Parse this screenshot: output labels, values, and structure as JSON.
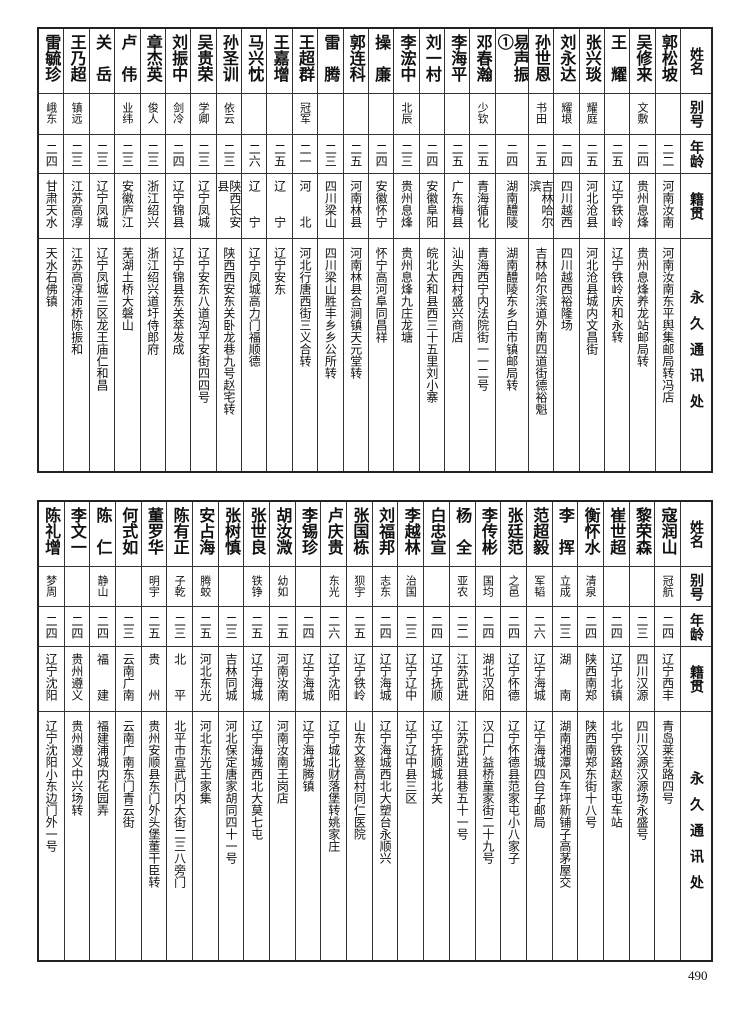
{
  "headers": {
    "name": "姓名",
    "alias": "别号",
    "age": "年龄",
    "origin": "籍贯",
    "address": "永久通讯处"
  },
  "top": {
    "rows": [
      {
        "name": "郭松坡",
        "alias": "",
        "age": "二二",
        "origin": "河南汝南",
        "address": "河南汝南东平舆集邮局转冯店"
      },
      {
        "name": "吴修来",
        "alias": "文敷",
        "age": "二四",
        "origin": "贵州息烽",
        "address": "贵州息烽养龙站邮局转"
      },
      {
        "name": "王　耀",
        "alias": "",
        "age": "二五",
        "origin": "辽宁铁岭",
        "address": "辽宁铁岭庆和永转"
      },
      {
        "name": "张兴琰",
        "alias": "耀庭",
        "age": "二五",
        "origin": "河北沧县",
        "address": "河北沧县城内文昌街"
      },
      {
        "name": "刘永达",
        "alias": "耀垠",
        "age": "二四",
        "origin": "四川越西",
        "address": "四川越西裕隆场"
      },
      {
        "name": "孙世恩",
        "alias": "书田",
        "age": "二五",
        "origin": "吉林哈尔滨",
        "address": "吉林哈尔滨道外南四道街德裕魁"
      },
      {
        "name": "易声振①",
        "alias": "",
        "age": "二四",
        "origin": "湖南醴陵",
        "address": "湖南醴陵东乡白市镇邮局转"
      },
      {
        "name": "邓春瀚",
        "alias": "少钦",
        "age": "二五",
        "origin": "青海循化",
        "address": "青海西宁内法院街一一二号"
      },
      {
        "name": "李海平",
        "alias": "",
        "age": "二五",
        "origin": "广东梅县",
        "address": "汕头西村盛兴商店"
      },
      {
        "name": "刘一村",
        "alias": "",
        "age": "二四",
        "origin": "安徽阜阳",
        "address": "皖北太和县西三十五里刘小寨"
      },
      {
        "name": "李浤中",
        "alias": "北辰",
        "age": "二三",
        "origin": "贵州息烽",
        "address": "贵州息烽九庄龙塘"
      },
      {
        "name": "操　廉",
        "alias": "",
        "age": "二四",
        "origin": "安徽怀宁",
        "address": "怀宁高河阜同昌祥"
      },
      {
        "name": "郭连科",
        "alias": "",
        "age": "二五",
        "origin": "河南林县",
        "address": "河南林县合涧镇天元堂转"
      },
      {
        "name": "雷　腾",
        "alias": "",
        "age": "二三",
        "origin": "四川梁山",
        "address": "四川梁山胜丰乡乡公所转"
      },
      {
        "name": "王超群",
        "alias": "冠军",
        "age": "二一",
        "origin": "河　　北",
        "address": "河北行唐西街三义合转"
      },
      {
        "name": "王嘉增",
        "alias": "",
        "age": "二五",
        "origin": "辽　　宁",
        "address": "辽宁安东"
      },
      {
        "name": "马兴忱",
        "alias": "",
        "age": "二六",
        "origin": "辽　　宁",
        "address": "辽宁凤城高力门福顺德"
      },
      {
        "name": "孙圣训",
        "alias": "依云",
        "age": "二三",
        "origin": "陕西长安县",
        "address": "陕西西安东关卧龙巷九号赵宅转"
      },
      {
        "name": "吴贵荣",
        "alias": "学卿",
        "age": "二三",
        "origin": "辽宁凤城",
        "address": "辽宁安东八道沟平安街四四号"
      },
      {
        "name": "刘振中",
        "alias": "剑冷",
        "age": "二四",
        "origin": "辽宁锦县",
        "address": "辽宁锦县东关萃发成"
      },
      {
        "name": "章杰英",
        "alias": "俊人",
        "age": "二三",
        "origin": "浙江绍兴",
        "address": "浙江绍兴道圩侍郎府"
      },
      {
        "name": "卢　伟",
        "alias": "业纬",
        "age": "二三",
        "origin": "安徽庐江",
        "address": "芜湖土桥大磐山"
      },
      {
        "name": "关　岳",
        "alias": "",
        "age": "二三",
        "origin": "辽宁凤城",
        "address": "辽宁凤城三区龙王庙仁和昌"
      },
      {
        "name": "王乃超",
        "alias": "镇远",
        "age": "二三",
        "origin": "江苏高淳",
        "address": "江苏高淳沛桥陈振和"
      },
      {
        "name": "雷毓珍",
        "alias": "峨东",
        "age": "二四",
        "origin": "甘肃天水",
        "address": "天水石佛镇"
      }
    ]
  },
  "bottom": {
    "rows": [
      {
        "name": "寇润山",
        "alias": "冠航",
        "age": "二四",
        "origin": "辽宁西丰",
        "address": "青岛莱芜路四号"
      },
      {
        "name": "黎荣森",
        "alias": "",
        "age": "二三",
        "origin": "四川汉源",
        "address": "四川汉源汉源场永盛号"
      },
      {
        "name": "崔世超",
        "alias": "",
        "age": "二四",
        "origin": "辽宁北镇",
        "address": "北宁铁路赵家屯车站"
      },
      {
        "name": "衡怀水",
        "alias": "清泉",
        "age": "二四",
        "origin": "陕西南郑",
        "address": "陕西南郑东街十八号"
      },
      {
        "name": "李　挥",
        "alias": "立成",
        "age": "二三",
        "origin": "湖　　南",
        "address": "湖南湘潭风车坪新铺子高茅屋交"
      },
      {
        "name": "范超毅",
        "alias": "军韬",
        "age": "二六",
        "origin": "辽宁海城",
        "address": "辽宁海城四台子邮局"
      },
      {
        "name": "张廷范",
        "alias": "之邑",
        "age": "二四",
        "origin": "辽宁怀德",
        "address": "辽宁怀德县范家屯小八家子"
      },
      {
        "name": "李传彬",
        "alias": "国均",
        "age": "二四",
        "origin": "湖北汉阳",
        "address": "汉口广益桥童家街二十九号"
      },
      {
        "name": "杨　全",
        "alias": "亚农",
        "age": "二二",
        "origin": "江苏武进",
        "address": "江苏武进县巷五十一号"
      },
      {
        "name": "白忠宣",
        "alias": "",
        "age": "二四",
        "origin": "辽宁抚顺",
        "address": "辽宁抚顺城北关"
      },
      {
        "name": "李越林",
        "alias": "治国",
        "age": "二三",
        "origin": "辽宁辽中",
        "address": "辽宁辽中县三区"
      },
      {
        "name": "刘福邦",
        "alias": "志东",
        "age": "二四",
        "origin": "辽宁海城",
        "address": "辽宁海城西北大塑台永顺兴"
      },
      {
        "name": "张国栋",
        "alias": "狈宇",
        "age": "二五",
        "origin": "辽宁铁岭",
        "address": "山东文登高村同仁医院"
      },
      {
        "name": "卢庆贵",
        "alias": "东光",
        "age": "二六",
        "origin": "辽宁沈阳",
        "address": "辽宁城北财落堡转姚家庄"
      },
      {
        "name": "李锡珍",
        "alias": "",
        "age": "二四",
        "origin": "辽宁海城",
        "address": "辽宁海城腾镇"
      },
      {
        "name": "胡汝溦",
        "alias": "幼如",
        "age": "二五",
        "origin": "河南汝南",
        "address": "河南汝南王岗店"
      },
      {
        "name": "张世良",
        "alias": "铁铮",
        "age": "二五",
        "origin": "辽宁海城",
        "address": "辽宁海城西北大莫七屯"
      },
      {
        "name": "张树慎",
        "alias": "",
        "age": "二三",
        "origin": "吉林同城",
        "address": "河北保定唐家胡同四十一号"
      },
      {
        "name": "安占海",
        "alias": "腾蛟",
        "age": "二五",
        "origin": "河北东光",
        "address": "河北东光王家集"
      },
      {
        "name": "陈有正",
        "alias": "子乾",
        "age": "二三",
        "origin": "北　　平",
        "address": "北平市宣武门内大街二三八旁门"
      },
      {
        "name": "董罗华",
        "alias": "明宇",
        "age": "二五",
        "origin": "贵　　州",
        "address": "贵州安顺县东门外头堡董干臣转"
      },
      {
        "name": "何式如",
        "alias": "",
        "age": "二三",
        "origin": "云南广南",
        "address": "云南广南东门青云街"
      },
      {
        "name": "陈　仁",
        "alias": "静山",
        "age": "二四",
        "origin": "福　　建",
        "address": "福建浦城内花园弄"
      },
      {
        "name": "李文一",
        "alias": "",
        "age": "二四",
        "origin": "贵州遵义",
        "address": "贵州遵义中兴场转"
      },
      {
        "name": "陈礼增",
        "alias": "梦周",
        "age": "二四",
        "origin": "辽宁沈阳",
        "address": "辽宁沈阳小东边门外一号"
      }
    ]
  },
  "page_number": "490"
}
